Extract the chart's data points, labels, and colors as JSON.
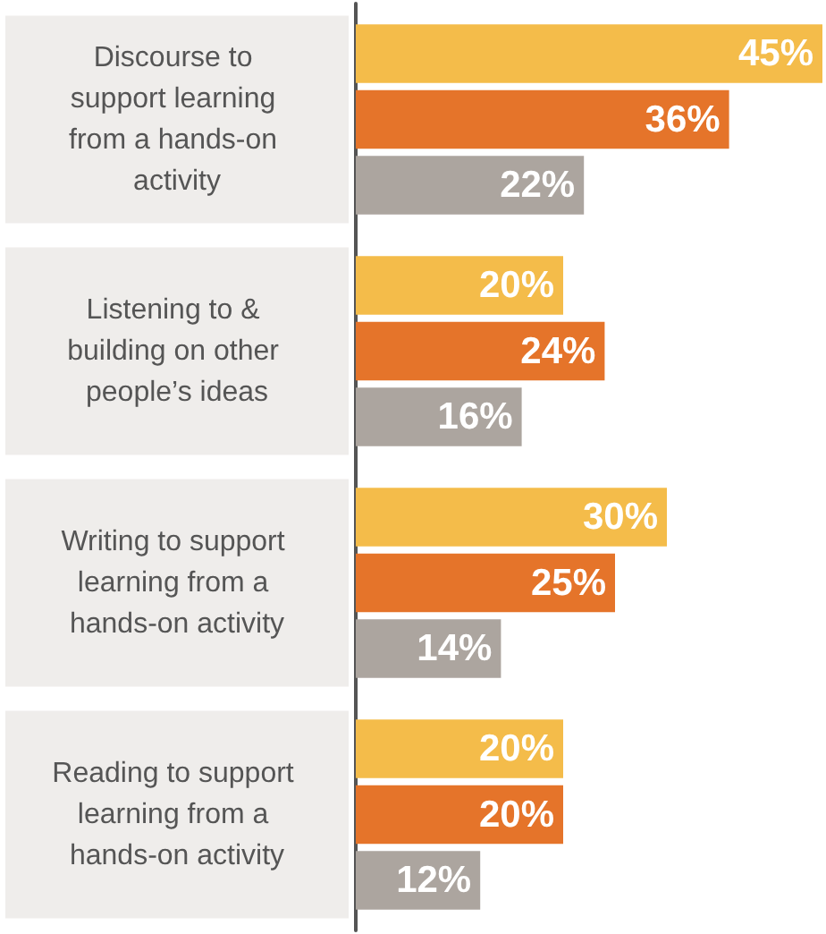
{
  "chart_data": {
    "type": "bar",
    "orientation": "horizontal",
    "categories": [
      "Discourse to support learning from a hands-on activity",
      "Listening to & building on other people’s ideas",
      "Writing to support learning from a hands-on activity",
      "Reading to support learning from a hands-on activity"
    ],
    "series": [
      {
        "color": "#f4bc4a",
        "values": [
          45,
          20,
          30,
          20
        ],
        "value_labels": [
          "45%",
          "20%",
          "30%",
          "20%"
        ]
      },
      {
        "color": "#e5742a",
        "values": [
          36,
          24,
          25,
          20
        ],
        "value_labels": [
          "36%",
          "24%",
          "25%",
          "20%"
        ]
      },
      {
        "color": "#aca59f",
        "values": [
          22,
          16,
          14,
          12
        ],
        "value_labels": [
          "22%",
          "16%",
          "14%",
          "12%"
        ]
      }
    ]
  }
}
